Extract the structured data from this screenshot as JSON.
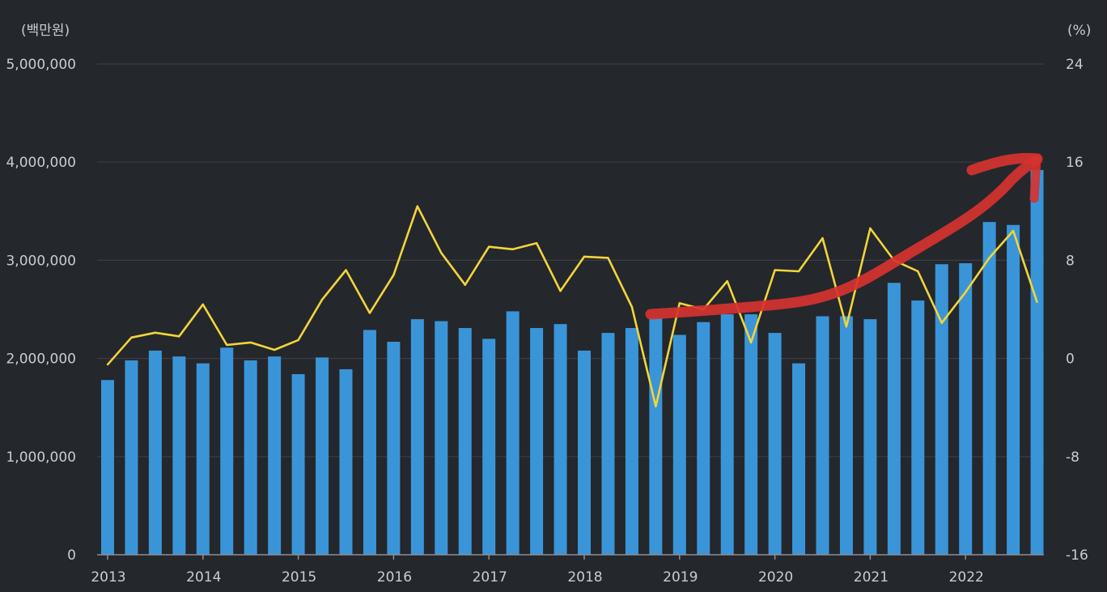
{
  "chart_data": {
    "type": "bar",
    "left_unit": "(백만원)",
    "right_unit": "(%)",
    "left_ylim": [
      0,
      5000000
    ],
    "right_ylim": [
      -16,
      24
    ],
    "left_ticks": [
      "0",
      "1,000,000",
      "2,000,000",
      "3,000,000",
      "4,000,000",
      "5,000,000"
    ],
    "right_ticks": [
      "-16",
      "-8",
      "0",
      "8",
      "16",
      "24"
    ],
    "x_ticks": [
      "2013",
      "2014",
      "2015",
      "2016",
      "2017",
      "2018",
      "2019",
      "2020",
      "2021",
      "2022"
    ],
    "grid": "horizontal",
    "categories": [
      "2013Q1",
      "2013Q2",
      "2013Q3",
      "2013Q4",
      "2014Q1",
      "2014Q2",
      "2014Q3",
      "2014Q4",
      "2015Q1",
      "2015Q2",
      "2015Q3",
      "2015Q4",
      "2016Q1",
      "2016Q2",
      "2016Q3",
      "2016Q4",
      "2017Q1",
      "2017Q2",
      "2017Q3",
      "2017Q4",
      "2018Q1",
      "2018Q2",
      "2018Q3",
      "2018Q4",
      "2019Q1",
      "2019Q2",
      "2019Q3",
      "2019Q4",
      "2020Q1",
      "2020Q2",
      "2020Q3",
      "2020Q4",
      "2021Q1",
      "2021Q2",
      "2021Q3",
      "2021Q4",
      "2022Q1",
      "2022Q2",
      "2022Q3",
      "2022Q4"
    ],
    "series": [
      {
        "axis": "left",
        "chart": "bar",
        "color": "#3a95d8",
        "values": [
          1780000,
          1980000,
          2080000,
          2020000,
          1950000,
          2110000,
          1980000,
          2020000,
          1840000,
          2010000,
          1890000,
          2290000,
          2170000,
          2400000,
          2380000,
          2310000,
          2200000,
          2480000,
          2310000,
          2350000,
          2080000,
          2260000,
          2310000,
          2410000,
          2240000,
          2370000,
          2450000,
          2450000,
          2260000,
          1950000,
          2430000,
          2430000,
          2400000,
          2770000,
          2590000,
          2960000,
          2970000,
          3390000,
          3360000,
          3920000
        ]
      },
      {
        "axis": "right",
        "chart": "line",
        "color": "#f2d53a",
        "values": [
          -0.5,
          1.7,
          2.1,
          1.8,
          4.4,
          1.1,
          1.3,
          0.7,
          1.5,
          4.8,
          7.2,
          3.7,
          6.8,
          12.4,
          8.6,
          6.0,
          9.1,
          8.9,
          9.4,
          5.5,
          8.3,
          8.2,
          4.2,
          -3.9,
          4.5,
          4.0,
          6.3,
          1.3,
          7.2,
          7.1,
          9.8,
          2.6,
          10.6,
          8.0,
          7.1,
          2.9,
          5.4,
          8.2,
          10.4,
          4.6
        ]
      }
    ],
    "annotation": {
      "type": "hand-drawn-arrow",
      "color": "#d6322f",
      "direction": "up-right"
    }
  }
}
